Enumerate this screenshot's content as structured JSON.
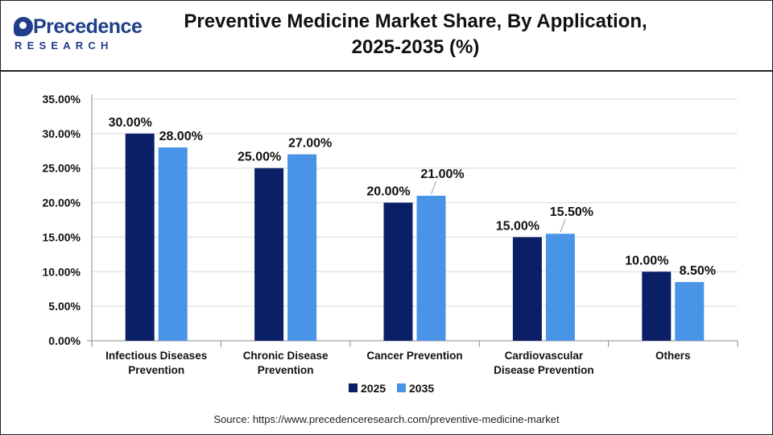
{
  "header": {
    "logo_word": "Precedence",
    "logo_sub": "RESEARCH",
    "title_line1": "Preventive Medicine Market Share, By Application,",
    "title_line2": "2025-2035 (%)"
  },
  "colors": {
    "series_2025": "#0b1f66",
    "series_2035": "#4a94e8",
    "brand": "#1f3f8a"
  },
  "source": "Source: https://www.precedenceresearch.com/preventive-medicine-market",
  "chart_data": {
    "type": "bar",
    "title": "Preventive Medicine Market Share, By Application, 2025-2035 (%)",
    "categories": [
      [
        "Infectious Diseases",
        "Prevention"
      ],
      [
        "Chronic Disease",
        "Prevention"
      ],
      [
        "Cancer Prevention"
      ],
      [
        "Cardiovascular",
        "Disease Prevention"
      ],
      [
        "Others"
      ]
    ],
    "series": [
      {
        "name": "2025",
        "values": [
          30,
          25,
          20,
          15,
          10
        ],
        "labels": [
          "30.00%",
          "25.00%",
          "20.00%",
          "15.00%",
          "10.00%"
        ]
      },
      {
        "name": "2035",
        "values": [
          28,
          27,
          21,
          15.5,
          8.5
        ],
        "labels": [
          "28.00%",
          "27.00%",
          "21.00%",
          "15.50%",
          "8.50%"
        ]
      }
    ],
    "ylim": [
      0,
      35
    ],
    "yticks": [
      0,
      5,
      10,
      15,
      20,
      25,
      30,
      35
    ],
    "ytick_labels": [
      "0.00%",
      "5.00%",
      "10.00%",
      "15.00%",
      "20.00%",
      "25.00%",
      "30.00%",
      "35.00%"
    ],
    "grid": true,
    "legend": "bottom-center"
  }
}
